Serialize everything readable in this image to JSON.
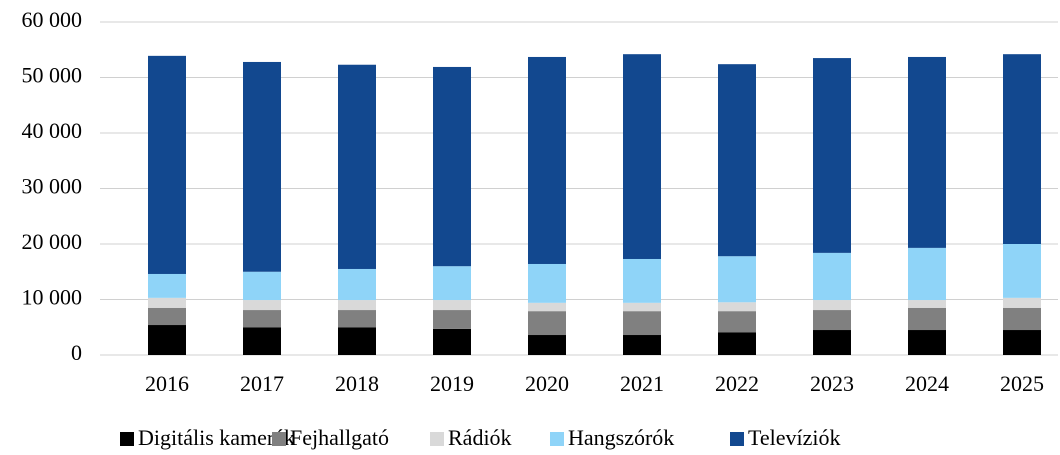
{
  "chart_data": {
    "type": "stacked_bar",
    "categories": [
      "2016",
      "2017",
      "2018",
      "2019",
      "2020",
      "2021",
      "2022",
      "2023",
      "2024",
      "2025"
    ],
    "series": [
      {
        "name": "Digitális kamerák",
        "color": "#000000",
        "values": [
          5400,
          5000,
          5000,
          4700,
          3600,
          3600,
          4100,
          4500,
          4500,
          4500
        ]
      },
      {
        "name": "Fejhallgató",
        "color": "#808080",
        "values": [
          3100,
          3100,
          3100,
          3400,
          4300,
          4300,
          3800,
          3600,
          4000,
          4000
        ]
      },
      {
        "name": "Rádiók",
        "color": "#d9d9d9",
        "values": [
          1800,
          1800,
          1800,
          1800,
          1500,
          1500,
          1600,
          1800,
          1400,
          1800
        ]
      },
      {
        "name": "Hangszórók",
        "color": "#8fd4f8",
        "values": [
          4300,
          5100,
          5600,
          6100,
          7000,
          7900,
          8300,
          8500,
          9400,
          9700
        ]
      },
      {
        "name": "Televíziók",
        "color": "#12488f",
        "values": [
          39300,
          37800,
          36800,
          35900,
          37300,
          36900,
          34600,
          35100,
          34400,
          34200
        ]
      }
    ],
    "ylim": [
      0,
      60000
    ],
    "yticks": [
      0,
      {
        "value": 10000,
        "label": "10 000"
      },
      {
        "value": 20000,
        "label": "20 000"
      },
      {
        "value": 30000,
        "label": "30 000"
      },
      {
        "value": 40000,
        "label": "40 000"
      },
      {
        "value": 50000,
        "label": "50 000"
      },
      {
        "value": 60000,
        "label": "60 000"
      }
    ],
    "grid": true,
    "legend": "bottom"
  }
}
